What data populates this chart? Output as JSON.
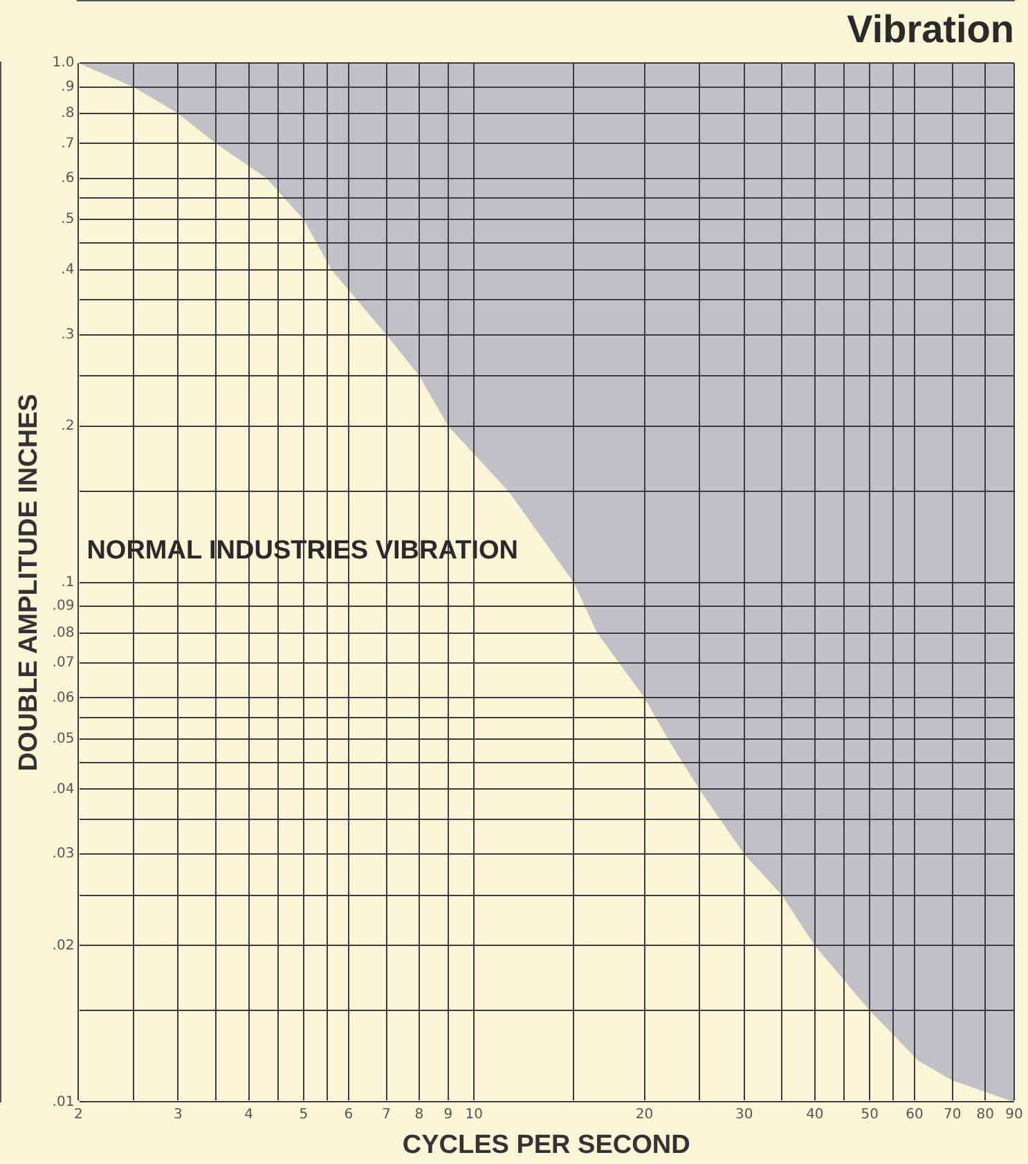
{
  "chart_data": {
    "type": "area",
    "title": "Vibration",
    "xlabel": "CYCLES PER SECOND",
    "ylabel": "DOUBLE AMPLITUDE INCHES",
    "annotations": [
      "NORMAL INDUSTRIES VIBRATION"
    ],
    "x": [
      2,
      2.5,
      3,
      3.5,
      4.3,
      5,
      5.6,
      7,
      8,
      9,
      11.5,
      15,
      16.5,
      20,
      22,
      25,
      30,
      35,
      40,
      50,
      61,
      70,
      90
    ],
    "values": [
      1,
      0.9,
      0.8,
      0.7,
      0.6,
      0.5,
      0.4,
      0.3,
      0.25,
      0.2,
      0.15,
      0.1,
      0.08,
      0.06,
      0.05,
      0.04,
      0.03,
      0.025,
      0.02,
      0.015,
      0.012,
      0.011,
      0.01
    ],
    "color": "#f9f6d8",
    "log": "xy",
    "marker": "none",
    "grid": true,
    "xlim": [
      2,
      90
    ],
    "xticks": [
      2,
      {
        "value": 2.5,
        "label": null
      },
      3,
      {
        "value": 3.5,
        "label": null
      },
      4,
      {
        "value": 4.5,
        "label": null
      },
      5,
      {
        "value": 5.5,
        "label": null
      },
      6,
      7,
      8,
      9,
      10,
      {
        "value": 15,
        "label": null
      },
      20,
      {
        "value": 25,
        "label": null
      },
      30,
      {
        "value": 35,
        "label": null
      },
      40,
      {
        "value": 45,
        "label": null
      },
      50,
      {
        "value": 55,
        "label": null
      },
      60,
      70,
      80,
      90
    ],
    "ylim": [
      0.01,
      1
    ],
    "yticks": [
      {
        "value": 0.01,
        "label": ".01"
      },
      {
        "value": 0.015,
        "label": null
      },
      {
        "value": 0.02,
        "label": ".02"
      },
      {
        "value": 0.025,
        "label": null
      },
      {
        "value": 0.03,
        "label": ".03"
      },
      {
        "value": 0.035,
        "label": null
      },
      {
        "value": 0.04,
        "label": ".04"
      },
      {
        "value": 0.045,
        "label": null
      },
      {
        "value": 0.05,
        "label": ".05"
      },
      {
        "value": 0.055,
        "label": null
      },
      {
        "value": 0.06,
        "label": ".06"
      },
      {
        "value": 0.07,
        "label": ".07"
      },
      {
        "value": 0.08,
        "label": ".08"
      },
      {
        "value": 0.09,
        "label": ".09"
      },
      {
        "value": 0.1,
        "label": ".1"
      },
      {
        "value": 0.15,
        "label": null
      },
      {
        "value": 0.2,
        "label": ".2"
      },
      {
        "value": 0.25,
        "label": null
      },
      {
        "value": 0.3,
        "label": ".3"
      },
      {
        "value": 0.35,
        "label": null
      },
      {
        "value": 0.4,
        "label": ".4"
      },
      {
        "value": 0.45,
        "label": null
      },
      {
        "value": 0.5,
        "label": ".5"
      },
      {
        "value": 0.55,
        "label": null
      },
      {
        "value": 0.6,
        "label": ".6"
      },
      {
        "value": 0.7,
        "label": ".7"
      },
      {
        "value": 0.8,
        "label": ".8"
      },
      {
        "value": 0.9,
        "label": ".9"
      },
      {
        "value": 1,
        "label": "1.0"
      }
    ]
  }
}
